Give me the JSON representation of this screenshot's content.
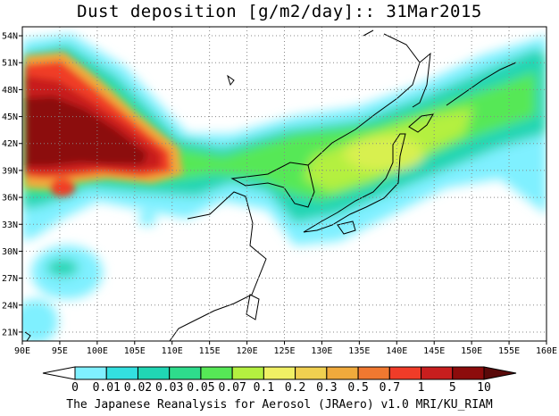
{
  "title": "Dust deposition [g/m2/day]:: 31Mar2015",
  "footer": "The Japanese Reanalysis for Aerosol (JRAero) v1.0 MRI/KU_RIAM",
  "map": {
    "lon_range": [
      90,
      160
    ],
    "lat_range": [
      20,
      55
    ],
    "lon_ticks": [
      "90E",
      "95E",
      "100E",
      "105E",
      "110E",
      "115E",
      "120E",
      "125E",
      "130E",
      "135E",
      "140E",
      "145E",
      "150E",
      "155E",
      "160E"
    ],
    "lat_ticks": [
      "21N",
      "24N",
      "27N",
      "30N",
      "33N",
      "36N",
      "39N",
      "42N",
      "45N",
      "48N",
      "51N",
      "54N"
    ],
    "grid": true
  },
  "colorbar": {
    "labels": [
      "0",
      "0.01",
      "0.02",
      "0.03",
      "0.05",
      "0.07",
      "0.1",
      "0.2",
      "0.3",
      "0.5",
      "0.7",
      "1",
      "5",
      "10"
    ],
    "colors": [
      "#ffffff",
      "#7ff0ff",
      "#33e0e0",
      "#20d6b4",
      "#2edc8c",
      "#56e856",
      "#b4f040",
      "#f0f064",
      "#f0d050",
      "#f0aa3c",
      "#f07830",
      "#f03c28",
      "#c81e1e",
      "#8c0c0c",
      "#5a0a0a"
    ]
  }
}
